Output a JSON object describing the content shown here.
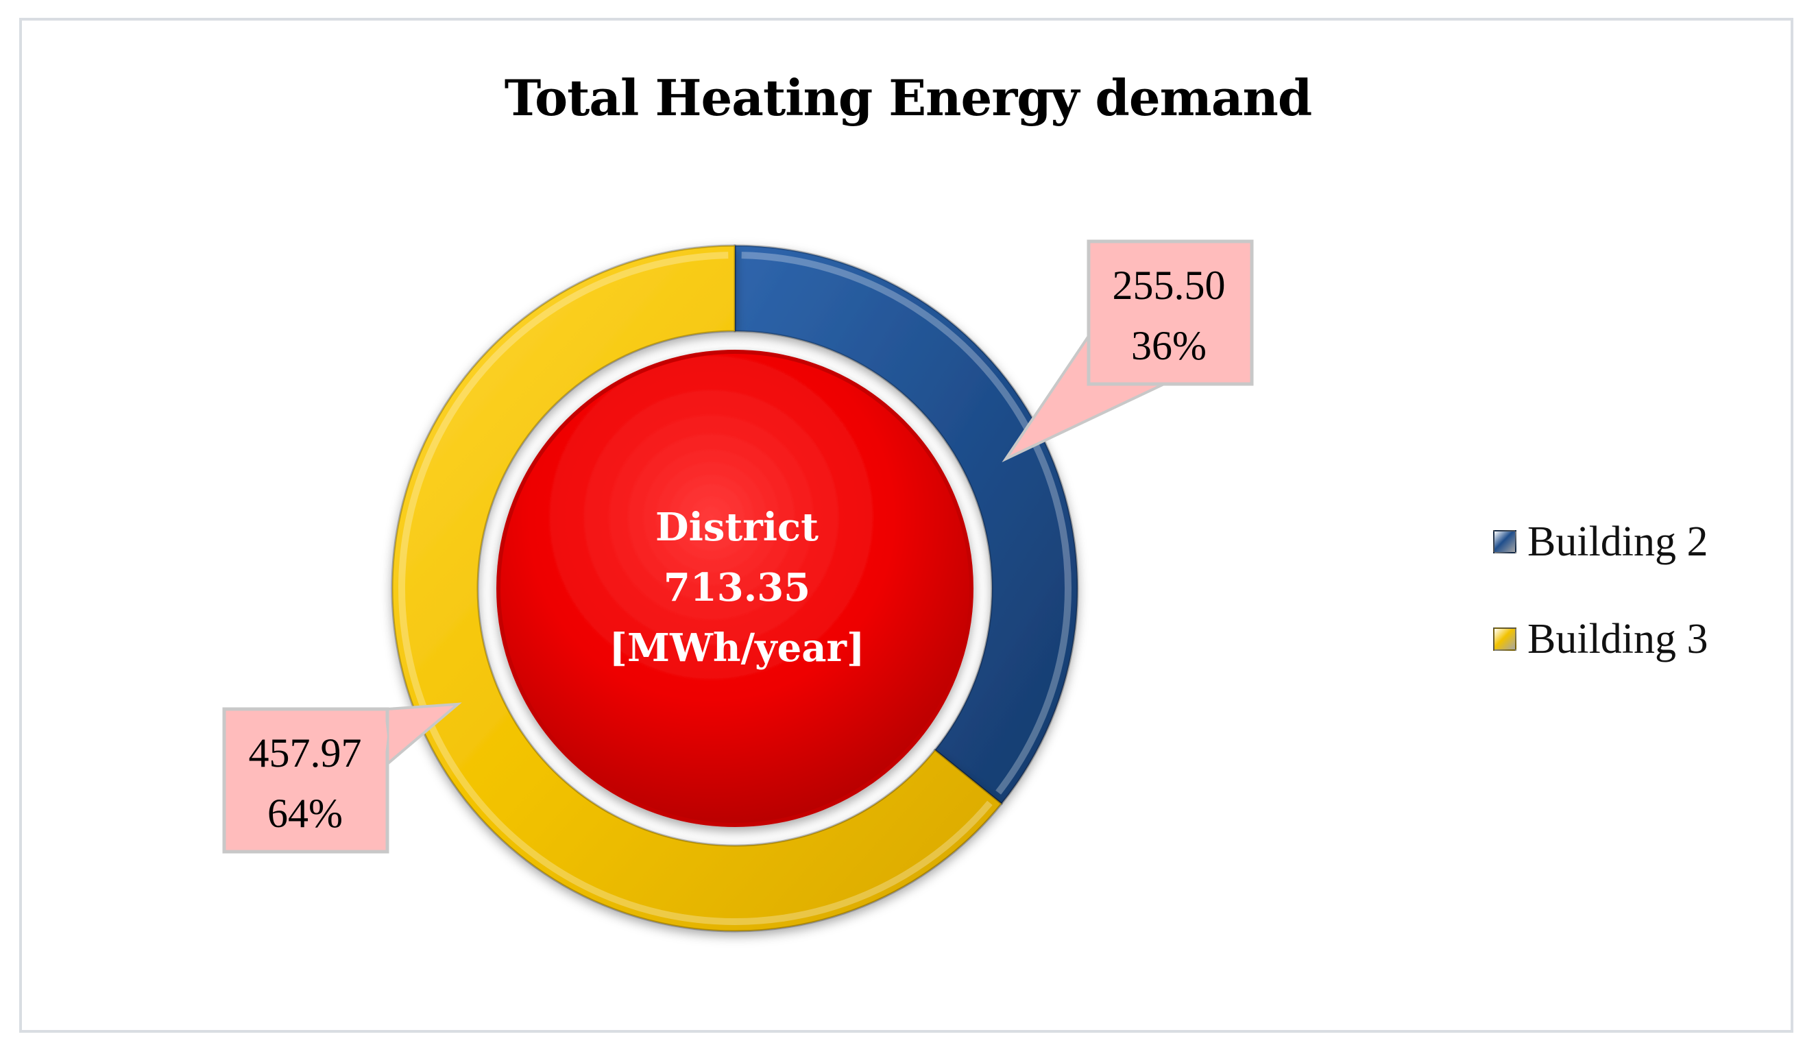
{
  "chart_data": {
    "type": "pie",
    "title": "Total Heating Energy demand",
    "center_label": [
      "District",
      "713.35",
      "[MWh/year]"
    ],
    "series": [
      {
        "name": "Building 2",
        "value": 255.5,
        "value_label": "255.50",
        "percent_label": "36%",
        "color": "#1f4e8c"
      },
      {
        "name": "Building 3",
        "value": 457.97,
        "value_label": "457.97",
        "percent_label": "64%",
        "color": "#f2c200"
      }
    ],
    "center_color": "#e80000",
    "label_box_color": "#ffbcbc",
    "legend_position": "right"
  }
}
